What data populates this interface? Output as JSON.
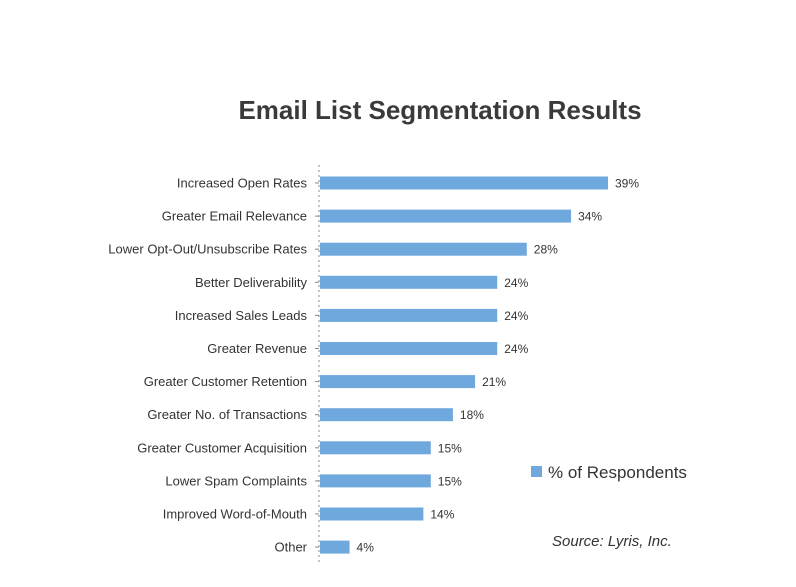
{
  "chart_data": {
    "type": "bar",
    "orientation": "horizontal",
    "title": "Email List Segmentation Results",
    "categories": [
      "Increased Open Rates",
      "Greater Email Relevance",
      "Lower Opt-Out/Unsubscribe Rates",
      "Better Deliverability",
      "Increased Sales Leads",
      "Greater Revenue",
      "Greater Customer Retention",
      "Greater No. of Transactions",
      "Greater Customer Acquisition",
      "Lower Spam Complaints",
      "Improved Word-of-Mouth",
      "Other"
    ],
    "series": [
      {
        "name": "% of Respondents",
        "values": [
          39,
          34,
          28,
          24,
          24,
          24,
          21,
          18,
          15,
          15,
          14,
          4
        ],
        "labels": [
          "39%",
          "34%",
          "28%",
          "24%",
          "24%",
          "24%",
          "21%",
          "18%",
          "15%",
          "15%",
          "14%",
          "4%"
        ],
        "color": "#6fa8dc"
      }
    ],
    "xlim": [
      0,
      39
    ],
    "legend_position": "right",
    "grid": false,
    "axis_line_style": "dotted"
  },
  "source": "Source: Lyris, Inc."
}
